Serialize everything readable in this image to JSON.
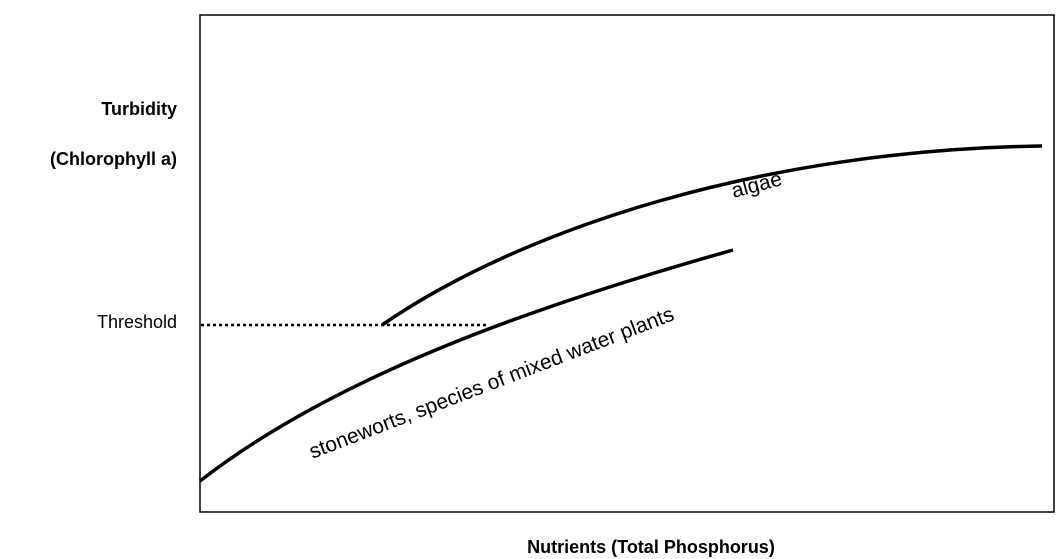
{
  "y_axis": {
    "title": "Turbidity",
    "subtitle": "(Chlorophyll a)",
    "threshold_label": "Threshold"
  },
  "x_axis": {
    "title": "Nutrients (Total Phosphorus)"
  },
  "curves": [
    {
      "label": "algae"
    },
    {
      "label": "stoneworts, species of mixed water plants"
    }
  ]
}
